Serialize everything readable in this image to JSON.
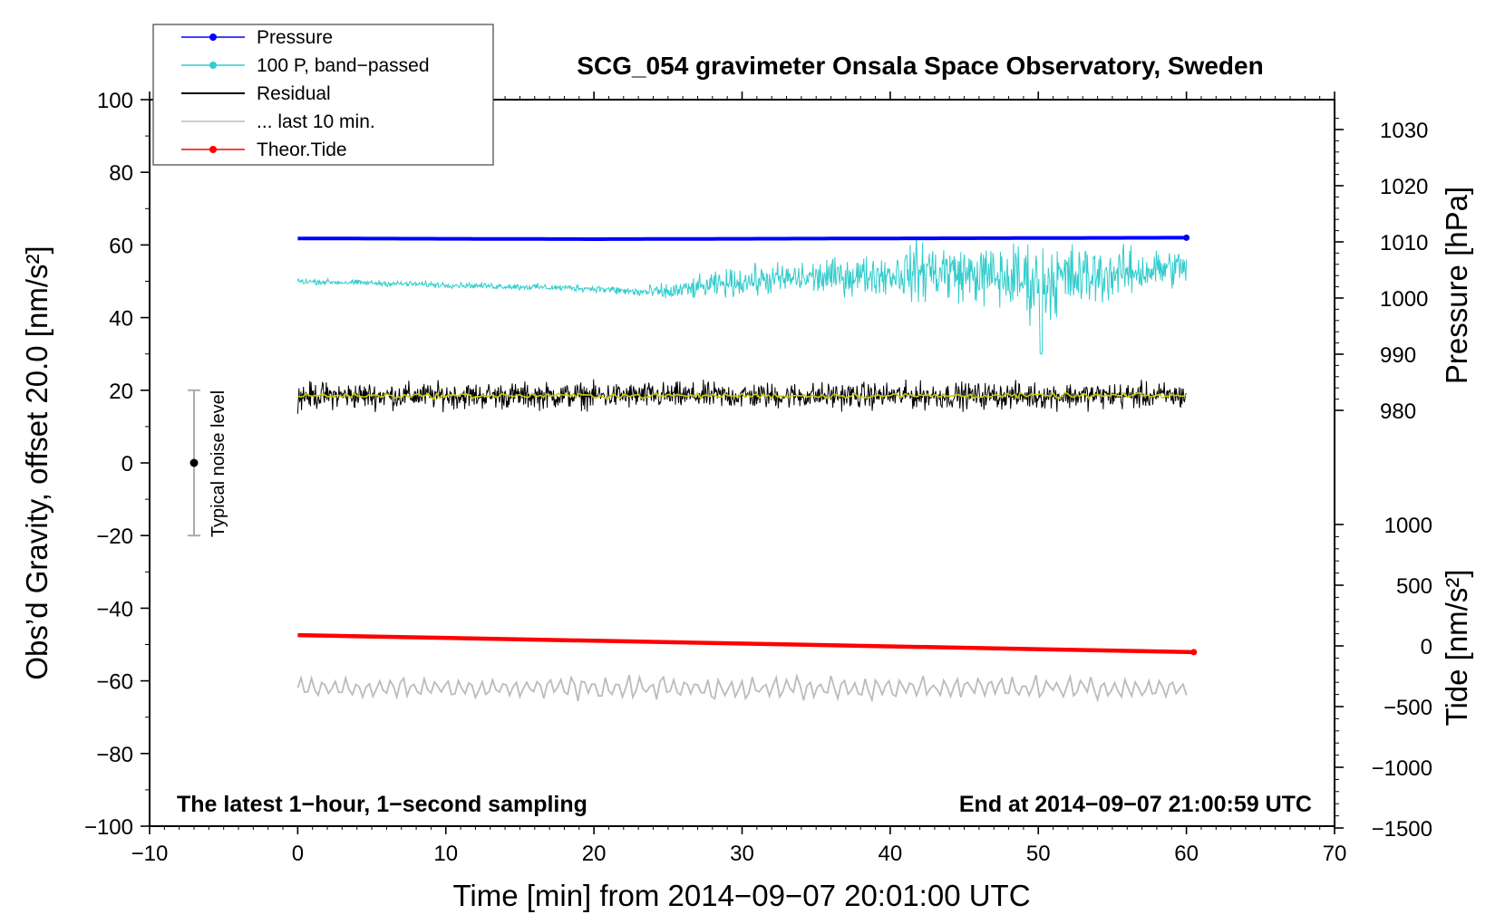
{
  "chart_data": {
    "type": "line",
    "title": "SCG_054 gravimeter Onsala Space Observatory, Sweden",
    "xlabel": "Time [min] from 2014−09−07 20:01:00 UTC",
    "ylabel_left": "Obs’d Gravity, offset 20.0 [nm/s²]",
    "ylabel_pressure": "Pressure [hPa]",
    "ylabel_tide": "Tide [nm/s²]",
    "xlim": [
      -10,
      70
    ],
    "ylim": [
      -100,
      100
    ],
    "x_ticks": [
      "−10",
      "0",
      "10",
      "20",
      "30",
      "40",
      "50",
      "60",
      "70"
    ],
    "y_ticks": [
      "100",
      "80",
      "60",
      "40",
      "20",
      "0",
      "−20",
      "−40",
      "−60",
      "−80",
      "−100"
    ],
    "pressure_ticks": [
      "1030",
      "1020",
      "1010",
      "1000",
      "990",
      "980"
    ],
    "tide_ticks": [
      "1000",
      "500",
      "0",
      "−500",
      "−1000",
      "−1500"
    ],
    "note_left": "The latest 1−hour, 1−second sampling",
    "note_right": "End at 2014−09−07 21:00:59 UTC",
    "noise_label": "Typical noise level",
    "noise_bar": {
      "center": 0,
      "low": -20,
      "high": 20,
      "x": -7
    },
    "legend": [
      {
        "label": "Pressure",
        "color": "#0000ff",
        "marker": true
      },
      {
        "label": "100 P, band−passed",
        "color": "#33cccc",
        "marker": true
      },
      {
        "label": "Residual",
        "color": "#000000",
        "marker": false
      },
      {
        "label": "... last 10 min.",
        "color": "#bbbbbb",
        "marker": false
      },
      {
        "label": "Theor.Tide",
        "color": "#ff0000",
        "marker": true
      }
    ],
    "series": [
      {
        "name": "Pressure",
        "color": "#0000ff",
        "x": [
          0,
          10,
          20,
          30,
          40,
          50,
          60
        ],
        "y": [
          61.8,
          61.7,
          61.6,
          61.7,
          61.8,
          61.9,
          62.0
        ]
      },
      {
        "name": "100 P, band-passed",
        "color": "#33cccc",
        "x": [
          0,
          10,
          20,
          23,
          25,
          30,
          35,
          40,
          43,
          45,
          50,
          55,
          60
        ],
        "y": [
          50,
          49,
          48,
          47,
          47,
          50,
          51,
          52,
          53,
          52,
          50,
          52,
          54
        ],
        "noise": [
          1,
          1,
          1.2,
          2,
          3,
          5,
          6,
          7,
          12,
          9,
          14,
          9,
          6
        ]
      },
      {
        "name": "Residual",
        "color": "#000000",
        "x": [
          0,
          60
        ],
        "y": [
          18.5,
          18.5
        ],
        "noise": [
          2.5,
          2.5
        ]
      },
      {
        "name": "Residual smoothed",
        "color": "#cccc00",
        "x": [
          0,
          60
        ],
        "y": [
          18.5,
          18.5
        ]
      },
      {
        "name": "... last 10 min.",
        "color": "#bbbbbb",
        "x": [
          0,
          60
        ],
        "y": [
          -62,
          -62
        ],
        "noise": [
          2.5,
          2.5
        ]
      },
      {
        "name": "Theor.Tide",
        "color": "#ff0000",
        "x": [
          0,
          60.5
        ],
        "y": [
          -47.4,
          -52.1
        ]
      }
    ]
  }
}
